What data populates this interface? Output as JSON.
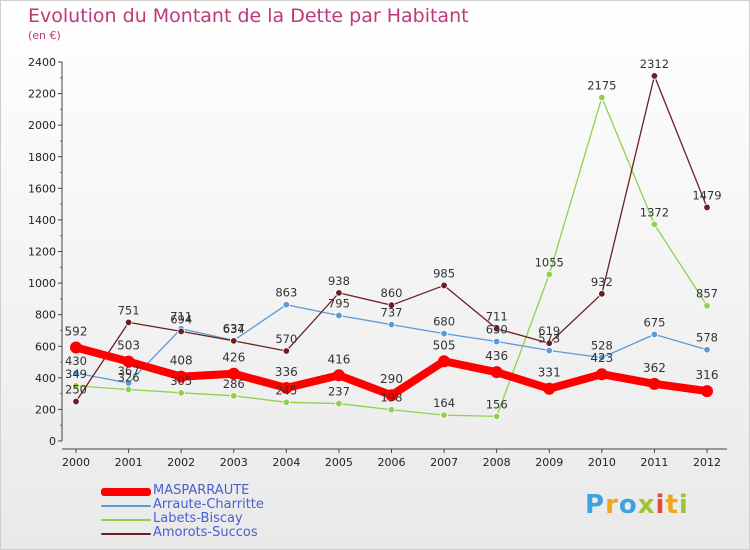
{
  "chart_data": {
    "type": "line",
    "title": "Evolution du Montant de la Dette par Habitant",
    "subtitle": "(en €)",
    "x": [
      "2000",
      "2001",
      "2002",
      "2003",
      "2004",
      "2005",
      "2006",
      "2007",
      "2008",
      "2009",
      "2010",
      "2011",
      "2012"
    ],
    "ylim": [
      0,
      2400
    ],
    "yticks": [
      0,
      200,
      400,
      600,
      800,
      1000,
      1200,
      1400,
      1600,
      1800,
      2000,
      2200,
      2400
    ],
    "grid": false,
    "legend_position": "bottom-left",
    "series": [
      {
        "name": "MASPARRAUTE",
        "color": "#ff0000",
        "values": [
          592,
          503,
          408,
          426,
          336,
          416,
          290,
          505,
          436,
          331,
          423,
          362,
          316
        ],
        "labels": [
          "592",
          "503",
          "408",
          "426",
          "336",
          "416",
          "290",
          "505",
          "436",
          "331",
          "423",
          "362",
          "316"
        ]
      },
      {
        "name": "Arraute-Charritte",
        "color": "#5b9bd5",
        "values": [
          430,
          367,
          711,
          637,
          863,
          795,
          737,
          680,
          630,
          573,
          528,
          675,
          578
        ],
        "labels": [
          "430",
          "367",
          "711",
          "637",
          "863",
          "795",
          "737",
          "680",
          "630",
          "573",
          "528",
          "675",
          "578"
        ]
      },
      {
        "name": "Labets-Biscay",
        "color": "#8fd14f",
        "values": [
          349,
          326,
          305,
          286,
          245,
          237,
          198,
          164,
          156,
          1055,
          2175,
          1372,
          857
        ],
        "labels": [
          "349",
          "326",
          "305",
          "286",
          "245",
          "237",
          "198",
          "164",
          "156",
          "1055",
          "2175",
          "1372",
          "857"
        ]
      },
      {
        "name": "Amorots-Succos",
        "color": "#6b1f22",
        "values": [
          250,
          751,
          694,
          634,
          570,
          938,
          860,
          985,
          711,
          619,
          932,
          2312,
          1479
        ],
        "labels": [
          "250",
          "751",
          "694",
          "634",
          "570",
          "938",
          "860",
          "985",
          "711",
          "619",
          "932",
          "2312",
          "1479"
        ]
      }
    ]
  },
  "brand": {
    "letters": [
      "P",
      "r",
      "o",
      "x",
      "i",
      "t",
      "i"
    ],
    "colors": [
      "#3aa3e0",
      "#f2a51a",
      "#3aa3e0",
      "#9cc536",
      "#e24a34",
      "#f2a51a",
      "#9cc536"
    ]
  }
}
